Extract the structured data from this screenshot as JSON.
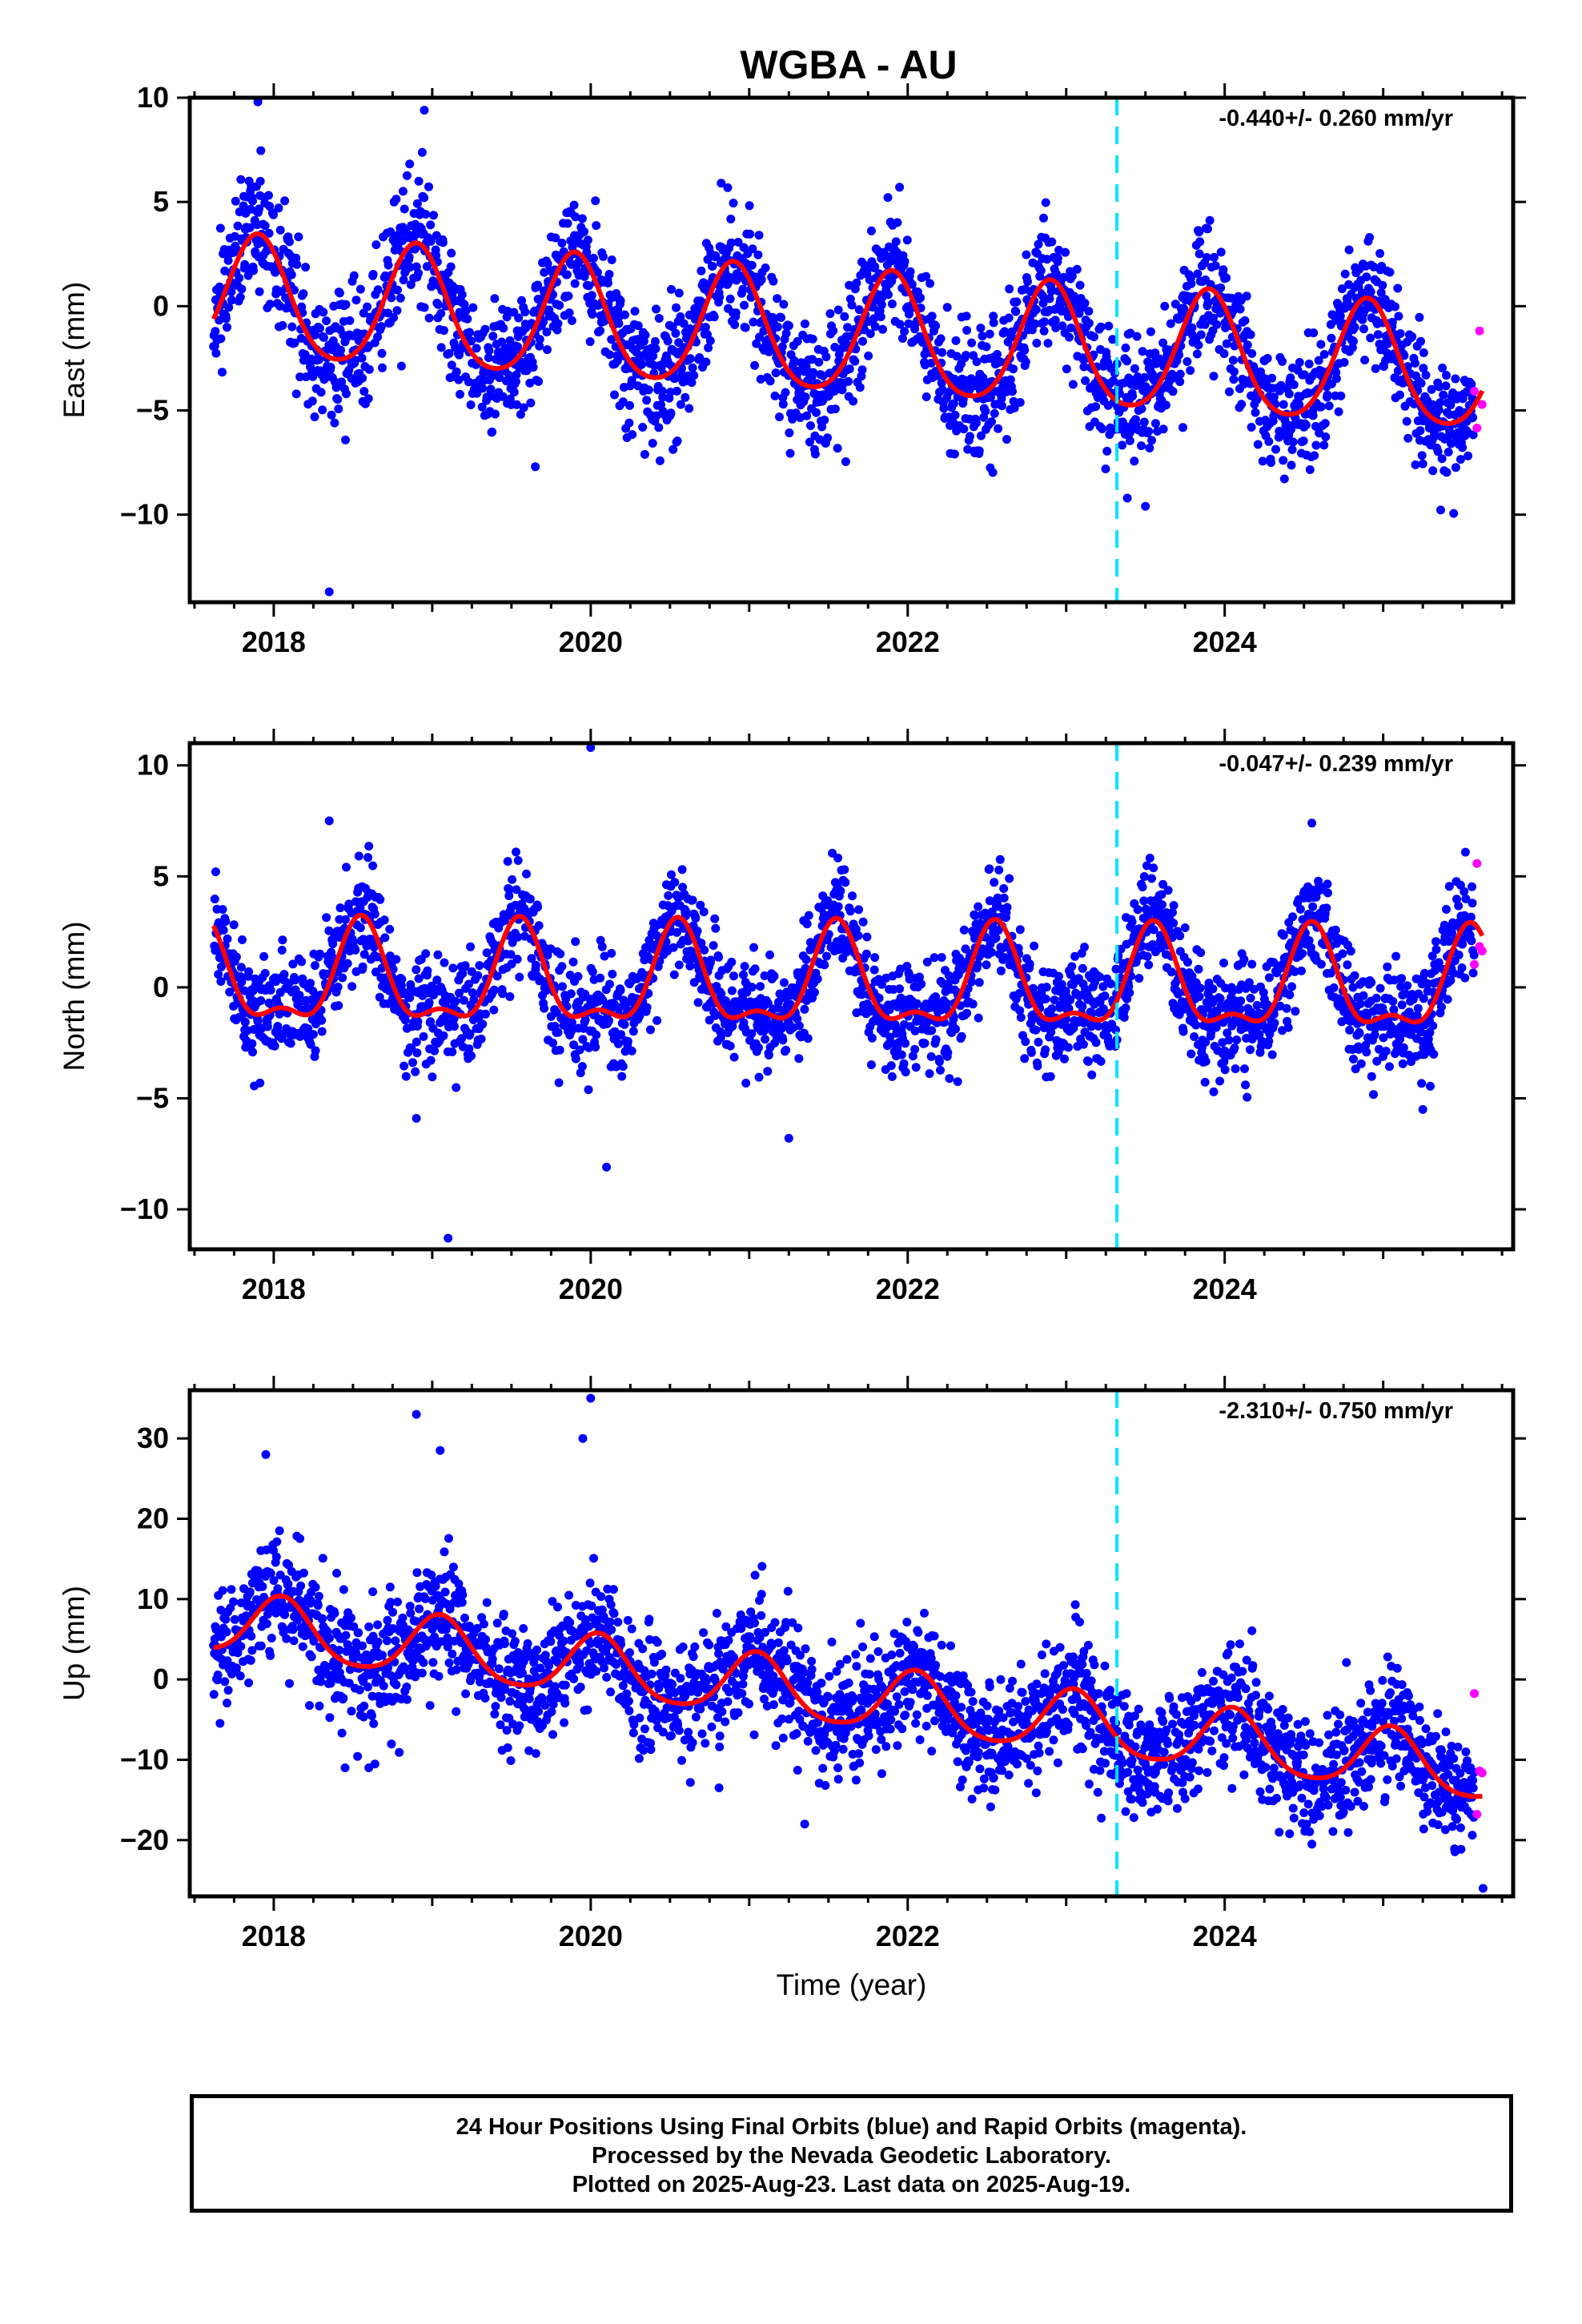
{
  "title": "WGBA - AU",
  "colors": {
    "final": "#0000ff",
    "rapid": "#ff00ff",
    "model": "#ff0000",
    "event": "#00e5ff",
    "axis": "#000000"
  },
  "chart_data": [
    {
      "type": "scatter",
      "ylabel": "East (mm)",
      "xlabel": "",
      "rate_label": "-0.440+/- 0.260 mm/yr",
      "xlim": [
        2017.47,
        2025.82
      ],
      "ylim": [
        -14.2,
        10.0
      ],
      "xticks": [
        2018,
        2020,
        2022,
        2024
      ],
      "yticks": [
        -10,
        -5,
        0,
        5,
        10
      ],
      "event_x": 2023.32,
      "data_start": 2017.62,
      "data_end": 2025.63,
      "rapid_start": 2025.575,
      "trend_mm_per_yr": -0.44,
      "offset_at_start": 0.3,
      "annual_amplitude": 2.9,
      "annual_peak_year_fraction": 0.9,
      "semiannual_amplitude": 0.4,
      "scatter_mm": 1.5,
      "seed": 11,
      "outliers": [
        [
          2017.9,
          9.8
        ],
        [
          2018.35,
          -13.7
        ],
        [
          2018.95,
          9.4
        ],
        [
          2019.65,
          -7.7
        ],
        [
          2023.5,
          -9.6
        ],
        [
          2025.25,
          -5.5
        ]
      ]
    },
    {
      "type": "scatter",
      "ylabel": "North (mm)",
      "xlabel": "",
      "rate_label": "-0.047+/- 0.239 mm/yr",
      "xlim": [
        2017.47,
        2025.82
      ],
      "ylim": [
        -11.8,
        11.0
      ],
      "xticks": [
        2018,
        2020,
        2022,
        2024
      ],
      "yticks": [
        -10,
        -5,
        0,
        5,
        10
      ],
      "event_x": 2023.32,
      "data_start": 2017.62,
      "data_end": 2025.63,
      "rapid_start": 2025.575,
      "trend_mm_per_yr": -0.047,
      "offset_at_start": 0.3,
      "annual_amplitude": 2.1,
      "annual_peak_year_fraction": 0.55,
      "semiannual_amplitude": 0.9,
      "scatter_mm": 1.2,
      "seed": 23,
      "outliers": [
        [
          2018.35,
          7.5
        ],
        [
          2018.9,
          -5.9
        ],
        [
          2019.1,
          -11.3
        ],
        [
          2020.0,
          10.8
        ],
        [
          2020.1,
          -8.1
        ],
        [
          2021.25,
          -6.8
        ],
        [
          2024.55,
          7.4
        ],
        [
          2025.25,
          -5.5
        ]
      ]
    },
    {
      "type": "scatter",
      "ylabel": "Up (mm)",
      "xlabel": "Time (year)",
      "rate_label": "-2.310+/- 0.750 mm/yr",
      "xlim": [
        2017.47,
        2025.82
      ],
      "ylim": [
        -27.0,
        36.0
      ],
      "xticks": [
        2018,
        2020,
        2022,
        2024
      ],
      "yticks": [
        -20,
        -10,
        0,
        10,
        20,
        30
      ],
      "event_x": 2023.32,
      "data_start": 2017.62,
      "data_end": 2025.63,
      "rapid_start": 2025.575,
      "trend_mm_per_yr": -2.31,
      "offset_at_start": 7.0,
      "annual_amplitude": 3.8,
      "annual_peak_year_fraction": 0.05,
      "semiannual_amplitude": 0.6,
      "scatter_mm": 3.8,
      "seed": 37,
      "outliers": [
        [
          2017.95,
          28.0
        ],
        [
          2018.9,
          33.0
        ],
        [
          2019.05,
          28.5
        ],
        [
          2019.95,
          30.0
        ],
        [
          2020.0,
          35.0
        ],
        [
          2018.45,
          -11.0
        ],
        [
          2018.6,
          -11.0
        ],
        [
          2021.35,
          -18.0
        ],
        [
          2024.55,
          -20.5
        ],
        [
          2025.63,
          -26.0
        ]
      ]
    }
  ],
  "footer": {
    "line1": "24 Hour Positions Using Final Orbits (blue) and Rapid Orbits (magenta).",
    "line2": "Processed by the Nevada Geodetic Laboratory.",
    "line3": "Plotted on 2025-Aug-23. Last data on 2025-Aug-19."
  }
}
